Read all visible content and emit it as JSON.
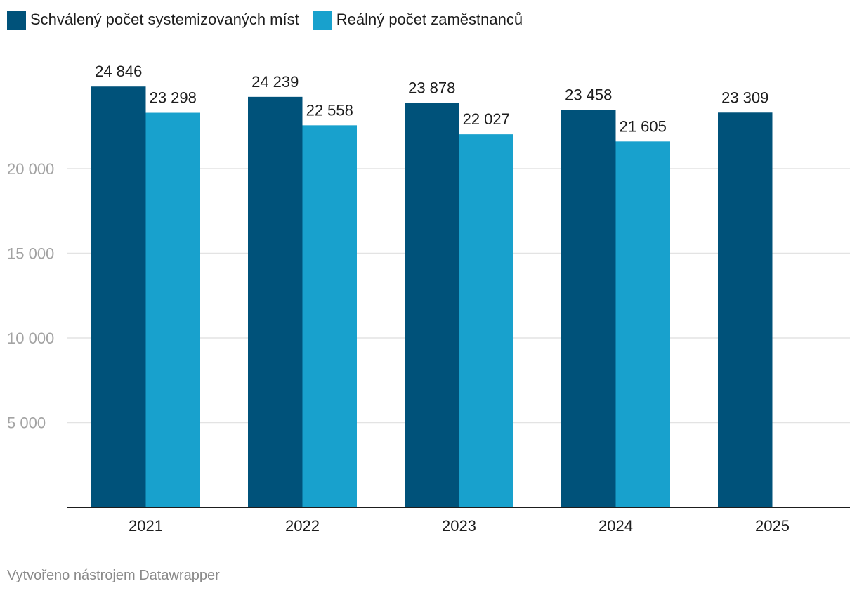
{
  "chart_data": {
    "type": "bar",
    "categories": [
      "2021",
      "2022",
      "2023",
      "2024",
      "2025"
    ],
    "series": [
      {
        "name": "Schválený počet systemizovaných míst",
        "color": "#00527a",
        "values": [
          24846,
          24239,
          23878,
          23458,
          23309
        ],
        "labels": [
          "24 846",
          "24 239",
          "23 878",
          "23 458",
          "23 309"
        ]
      },
      {
        "name": "Reálný počet zaměstnanců",
        "color": "#18a1cd",
        "values": [
          23298,
          22558,
          22027,
          21605,
          null
        ],
        "labels": [
          "23 298",
          "22 558",
          "22 027",
          "21 605",
          ""
        ]
      }
    ],
    "yticks": [
      5000,
      10000,
      15000,
      20000
    ],
    "ytick_labels": [
      "5 000",
      "10 000",
      "15 000",
      "20 000"
    ],
    "ylim": [
      0,
      25000
    ],
    "grid": true,
    "legend_position": "top-left"
  },
  "footer": "Vytvořeno nástrojem Datawrapper"
}
